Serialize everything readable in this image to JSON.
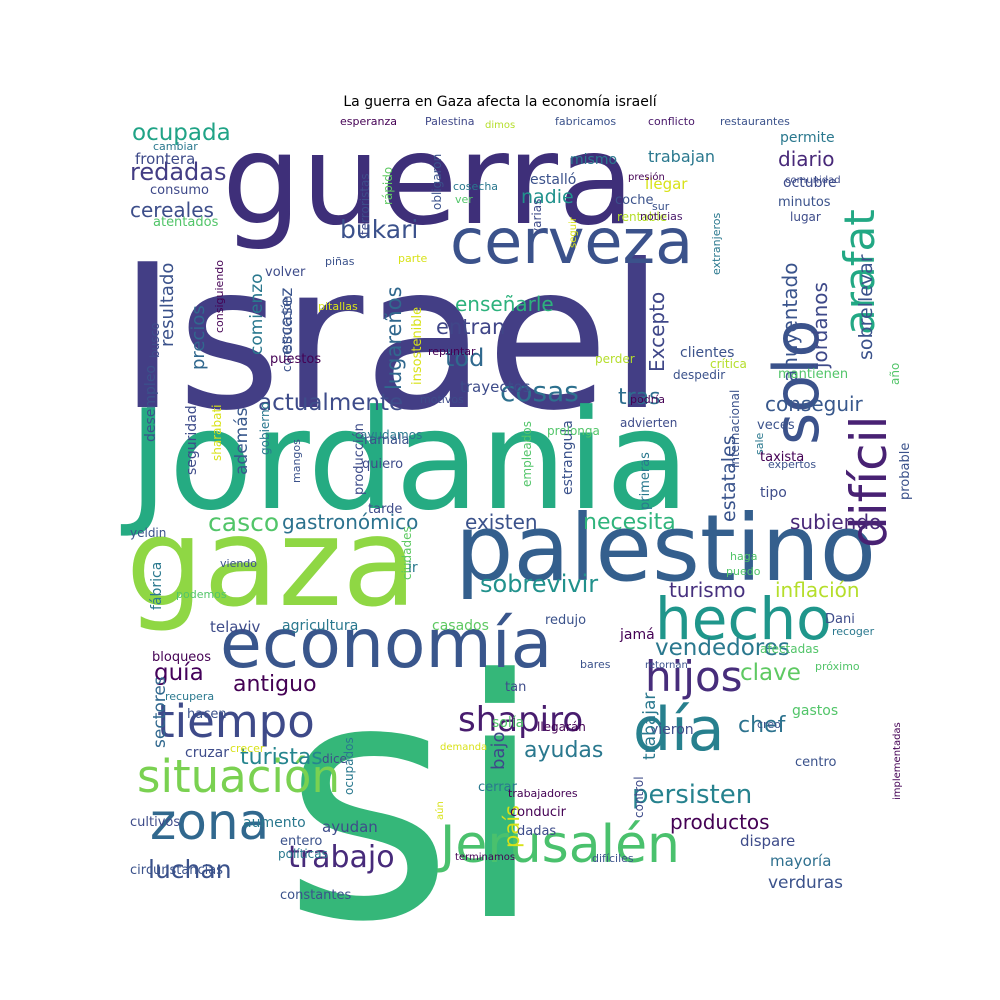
{
  "title": "La guerra en Gaza afecta la economía israelí",
  "words": [
    {
      "text": "Israel",
      "color": "#433e85"
    },
    {
      "text": "Jordania",
      "color": "#25ab82"
    },
    {
      "text": "si",
      "color": "#35b779"
    },
    {
      "text": "guerra",
      "color": "#3e2f79"
    },
    {
      "text": "gaza",
      "color": "#8fd744"
    },
    {
      "text": "palestino",
      "color": "#345f8d"
    },
    {
      "text": "economía",
      "color": "#39568c"
    },
    {
      "text": "cerveza",
      "color": "#3b528b"
    },
    {
      "text": "hecho",
      "color": "#1f968b"
    },
    {
      "text": "Jerusalén",
      "color": "#4ac16d"
    },
    {
      "text": "día",
      "color": "#27808e"
    },
    {
      "text": "difícil",
      "color": "#482173"
    },
    {
      "text": "arafat",
      "color": "#22a884"
    },
    {
      "text": "solo",
      "color": "#3b528b"
    },
    {
      "text": "zona",
      "color": "#31688e"
    },
    {
      "text": "situación",
      "color": "#7ad151"
    },
    {
      "text": "tiempo",
      "color": "#3e4a89"
    },
    {
      "text": "hijos",
      "color": "#472d7b"
    },
    {
      "text": "shapiro",
      "color": "#481c6e"
    },
    {
      "text": "cosas",
      "color": "#2d708e"
    },
    {
      "text": "trabajo",
      "color": "#472a7a"
    },
    {
      "text": "persisten",
      "color": "#26828e"
    },
    {
      "text": "luchan",
      "color": "#3b528b"
    },
    {
      "text": "productos",
      "color": "#440154"
    },
    {
      "text": "actualmente",
      "color": "#3e4c8a"
    },
    {
      "text": "bukari",
      "color": "#3b518b"
    },
    {
      "text": "ocupada",
      "color": "#20a386"
    },
    {
      "text": "redadas",
      "color": "#433d84"
    },
    {
      "text": "cereales",
      "color": "#3d4e8a"
    },
    {
      "text": "sobrevivir",
      "color": "#21918c"
    },
    {
      "text": "vendedores",
      "color": "#2a788e"
    },
    {
      "text": "necesita",
      "color": "#2fb47c"
    },
    {
      "text": "existen",
      "color": "#3b528b"
    },
    {
      "text": "gastronómico",
      "color": "#2c728e"
    },
    {
      "text": "casco",
      "color": "#52c569"
    },
    {
      "text": "turistas",
      "color": "#25858e"
    },
    {
      "text": "ayudas",
      "color": "#2a788e"
    },
    {
      "text": "antiguo",
      "color": "#440154"
    },
    {
      "text": "guía",
      "color": "#44015a"
    },
    {
      "text": "clave",
      "color": "#5ec962"
    },
    {
      "text": "chef",
      "color": "#2c728e"
    },
    {
      "text": "subiendo",
      "color": "#482878"
    },
    {
      "text": "inflación",
      "color": "#b5de2b"
    },
    {
      "text": "turismo",
      "color": "#46307e"
    },
    {
      "text": "tod",
      "color": "#30698e"
    },
    {
      "text": "entran",
      "color": "#404688"
    },
    {
      "text": "enseñarle",
      "color": "#2db27d"
    },
    {
      "text": "lugareños",
      "color": "#31688e"
    },
    {
      "text": "tras",
      "color": "#2e6e8e"
    },
    {
      "text": "conseguir",
      "color": "#38588c"
    },
    {
      "text": "ahuyentado",
      "color": "#3a548c"
    },
    {
      "text": "jordanos",
      "color": "#3e4989"
    },
    {
      "text": "sobrellevar",
      "color": "#3b528b"
    },
    {
      "text": "Excepto",
      "color": "#3f4788"
    },
    {
      "text": "nadie",
      "color": "#20928c"
    },
    {
      "text": "bajo",
      "color": "#3e4989"
    },
    {
      "text": "diario",
      "color": "#482979"
    },
    {
      "text": "trabajan",
      "color": "#2a788e"
    },
    {
      "text": "estatales",
      "color": "#3a548c"
    },
    {
      "text": "país",
      "color": "#d8e219"
    },
    {
      "text": "verduras",
      "color": "#3b528b"
    },
    {
      "text": "mayoría",
      "color": "#2e6f8e"
    },
    {
      "text": "dispare",
      "color": "#3e4c8a"
    },
    {
      "text": "sectores",
      "color": "#31688e"
    },
    {
      "text": "resultado",
      "color": "#3b528b"
    },
    {
      "text": "precios",
      "color": "#31688e"
    },
    {
      "text": "comienzo",
      "color": "#2a788e"
    },
    {
      "text": "escasez",
      "color": "#3a548c"
    },
    {
      "text": "además",
      "color": "#38588c"
    },
    {
      "text": "seguridad",
      "color": "#3e4c8a"
    },
    {
      "text": "desempleo",
      "color": "#3b528b"
    },
    {
      "text": "frontera",
      "color": "#3e4a89"
    },
    {
      "text": "consumo",
      "color": "#3e4989"
    },
    {
      "text": "atentados",
      "color": "#52c569"
    },
    {
      "text": "cambiar",
      "color": "#2a788e"
    },
    {
      "text": "esperanza",
      "color": "#440154"
    },
    {
      "text": "Palestina",
      "color": "#3f4788"
    },
    {
      "text": "dimos",
      "color": "#b5de2b"
    },
    {
      "text": "fabricamos",
      "color": "#3b528b"
    },
    {
      "text": "conflicto",
      "color": "#481769"
    },
    {
      "text": "restaurantes",
      "color": "#3b528b"
    },
    {
      "text": "permite",
      "color": "#2a788e"
    },
    {
      "text": "octubre",
      "color": "#3e4c8a"
    },
    {
      "text": "minutos",
      "color": "#3b528b"
    },
    {
      "text": "lugar",
      "color": "#3e4c8a"
    },
    {
      "text": "llegar",
      "color": "#d8e219"
    },
    {
      "text": "coche",
      "color": "#3b528b"
    },
    {
      "text": "rentable",
      "color": "#b5de2b"
    },
    {
      "text": "noticias",
      "color": "#481769"
    },
    {
      "text": "estalló",
      "color": "#3b528b"
    },
    {
      "text": "mismo",
      "color": "#2a788e"
    },
    {
      "text": "varias",
      "color": "#3e4c8a"
    },
    {
      "text": "obligaron",
      "color": "#3b528b"
    },
    {
      "text": "cosecha",
      "color": "#2a788e"
    },
    {
      "text": "ver",
      "color": "#52c569"
    },
    {
      "text": "rápido",
      "color": "#5ec962"
    },
    {
      "text": "terroristas",
      "color": "#3e4c8a"
    },
    {
      "text": "volver",
      "color": "#3e4c8a"
    },
    {
      "text": "construcción",
      "color": "#3b528b"
    },
    {
      "text": "insostenible",
      "color": "#d8e219"
    },
    {
      "text": "repuntar",
      "color": "#440154"
    },
    {
      "text": "clientes",
      "color": "#3b528b"
    },
    {
      "text": "trayectos",
      "color": "#3e4c8a"
    },
    {
      "text": "puestos",
      "color": "#440154"
    },
    {
      "text": "busco",
      "color": "#3e4c8a"
    },
    {
      "text": "consiguiendo",
      "color": "#440154"
    },
    {
      "text": "piñas",
      "color": "#3b528b"
    },
    {
      "text": "pitallas",
      "color": "#d8e219"
    },
    {
      "text": "parte",
      "color": "#d8e219"
    },
    {
      "text": "sur",
      "color": "#3b528b"
    },
    {
      "text": "presión",
      "color": "#440154"
    },
    {
      "text": "comunidad",
      "color": "#3e4c8a"
    },
    {
      "text": "seguir",
      "color": "#d8e219"
    },
    {
      "text": "extranjeros",
      "color": "#2a788e"
    },
    {
      "text": "perder",
      "color": "#b5de2b"
    },
    {
      "text": "crítica",
      "color": "#b5de2b"
    },
    {
      "text": "año",
      "color": "#52c569"
    },
    {
      "text": "motivos",
      "color": "#3e4c8a"
    },
    {
      "text": "podría",
      "color": "#440154"
    },
    {
      "text": "despedir",
      "color": "#3b528b"
    },
    {
      "text": "mantienen",
      "color": "#52c569"
    },
    {
      "text": "advierten",
      "color": "#3e4c8a"
    },
    {
      "text": "veces",
      "color": "#3b528b"
    },
    {
      "text": "internacional",
      "color": "#3b528b"
    },
    {
      "text": "sale",
      "color": "#2a788e"
    },
    {
      "text": "expertos",
      "color": "#3b528b"
    },
    {
      "text": "taxista",
      "color": "#440154"
    },
    {
      "text": "probable",
      "color": "#3b528b"
    },
    {
      "text": "tipo",
      "color": "#3e4c8a"
    },
    {
      "text": "primeras",
      "color": "#2a788e"
    },
    {
      "text": "estrangula",
      "color": "#3b528b"
    },
    {
      "text": "empleados",
      "color": "#52c569"
    },
    {
      "text": "prolonga",
      "color": "#52c569"
    },
    {
      "text": "ayudamos",
      "color": "#2a788e"
    },
    {
      "text": "gobierno",
      "color": "#2a788e"
    },
    {
      "text": "sharabati",
      "color": "#d8e219"
    },
    {
      "text": "mangos",
      "color": "#3b528b"
    },
    {
      "text": "producción",
      "color": "#3e4c8a"
    },
    {
      "text": "ramala",
      "color": "#3b528b"
    },
    {
      "text": "quiero",
      "color": "#3e4c8a"
    },
    {
      "text": "tarde",
      "color": "#3e4c8a"
    },
    {
      "text": "yeldin",
      "color": "#3b528b"
    },
    {
      "text": "ciudades",
      "color": "#5ec962"
    },
    {
      "text": "viendo",
      "color": "#3b528b"
    },
    {
      "text": "ir",
      "color": "#2a788e"
    },
    {
      "text": "haga",
      "color": "#52c569"
    },
    {
      "text": "puedo",
      "color": "#52c569"
    },
    {
      "text": "fábrica",
      "color": "#2a788e"
    },
    {
      "text": "podemos",
      "color": "#52c569"
    },
    {
      "text": "telaviv",
      "color": "#3e4c8a"
    },
    {
      "text": "agricultura",
      "color": "#2a788e"
    },
    {
      "text": "casados",
      "color": "#5ec962"
    },
    {
      "text": "redujo",
      "color": "#3b528b"
    },
    {
      "text": "jamá",
      "color": "#440154"
    },
    {
      "text": "Dani",
      "color": "#3e4c8a"
    },
    {
      "text": "recoger",
      "color": "#2a788e"
    },
    {
      "text": "retornan",
      "color": "#3b528b"
    },
    {
      "text": "afectadas",
      "color": "#52c569"
    },
    {
      "text": "próximo",
      "color": "#52c569"
    },
    {
      "text": "bloqueos",
      "color": "#440154"
    },
    {
      "text": "tan",
      "color": "#3e4c8a"
    },
    {
      "text": "bares",
      "color": "#3b528b"
    },
    {
      "text": "solía",
      "color": "#52c569"
    },
    {
      "text": "llegarán",
      "color": "#440154"
    },
    {
      "text": "gastos",
      "color": "#52c569"
    },
    {
      "text": "recupera",
      "color": "#2a788e"
    },
    {
      "text": "hacen",
      "color": "#3b528b"
    },
    {
      "text": "vieron",
      "color": "#3e4c8a"
    },
    {
      "text": "creo",
      "color": "#3b528b"
    },
    {
      "text": "cruzar",
      "color": "#3e4c8a"
    },
    {
      "text": "crecer",
      "color": "#d8e219"
    },
    {
      "text": "demanda",
      "color": "#d8e219"
    },
    {
      "text": "dice",
      "color": "#3e4c8a"
    },
    {
      "text": "ocupados",
      "color": "#2a788e"
    },
    {
      "text": "trabajar",
      "color": "#2a788e"
    },
    {
      "text": "cerrar",
      "color": "#2a788e"
    },
    {
      "text": "centro",
      "color": "#3b528b"
    },
    {
      "text": "implementadas",
      "color": "#440154"
    },
    {
      "text": "trabajadores",
      "color": "#440154"
    },
    {
      "text": "control",
      "color": "#3e4c8a"
    },
    {
      "text": "cultivos",
      "color": "#3e4c8a"
    },
    {
      "text": "aumento",
      "color": "#2a788e"
    },
    {
      "text": "ayudan",
      "color": "#3e4c8a"
    },
    {
      "text": "entero",
      "color": "#3b528b"
    },
    {
      "text": "políticas",
      "color": "#2a788e"
    },
    {
      "text": "circunstancias",
      "color": "#3b528b"
    },
    {
      "text": "conducir",
      "color": "#440154"
    },
    {
      "text": "dadas",
      "color": "#3e4c8a"
    },
    {
      "text": "aún",
      "color": "#d8e219"
    },
    {
      "text": "terminamos",
      "color": "#440154"
    },
    {
      "text": "difíciles",
      "color": "#3b528b"
    },
    {
      "text": "constantes",
      "color": "#3b528b"
    }
  ]
}
